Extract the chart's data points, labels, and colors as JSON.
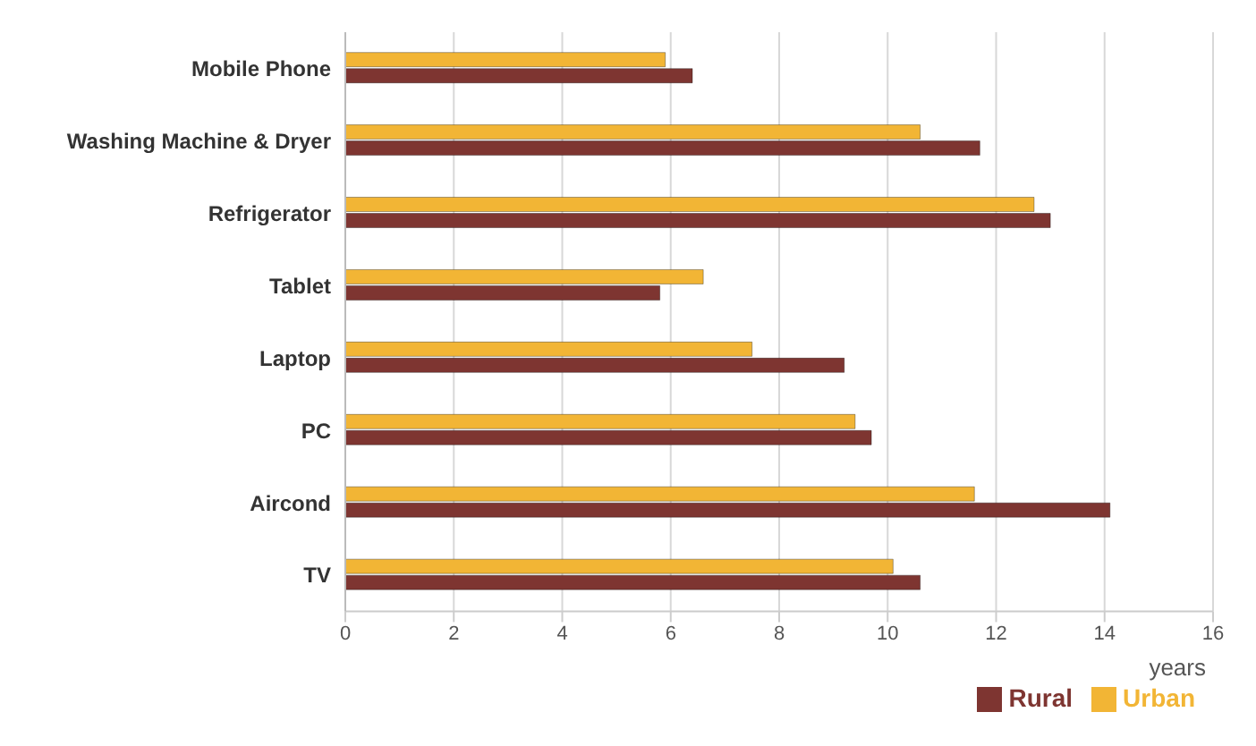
{
  "chart_data": {
    "type": "bar",
    "orientation": "horizontal",
    "xlabel": "years",
    "categories": [
      "Mobile Phone",
      "Washing Machine & Dryer",
      "Refrigerator",
      "Tablet",
      "Laptop",
      "PC",
      "Aircond",
      "TV"
    ],
    "series": [
      {
        "name": "Urban",
        "color": "#f2b535",
        "values": [
          5.9,
          10.6,
          12.7,
          6.6,
          7.5,
          9.4,
          11.6,
          10.1
        ]
      },
      {
        "name": "Rural",
        "color": "#7e3531",
        "values": [
          6.4,
          11.7,
          13.0,
          5.8,
          9.2,
          9.7,
          14.1,
          10.6
        ]
      }
    ],
    "xlim": [
      0,
      16
    ],
    "xticks": [
      0,
      2,
      4,
      6,
      8,
      10,
      12,
      14,
      16
    ],
    "grid": "x",
    "legend": "bottom right"
  }
}
